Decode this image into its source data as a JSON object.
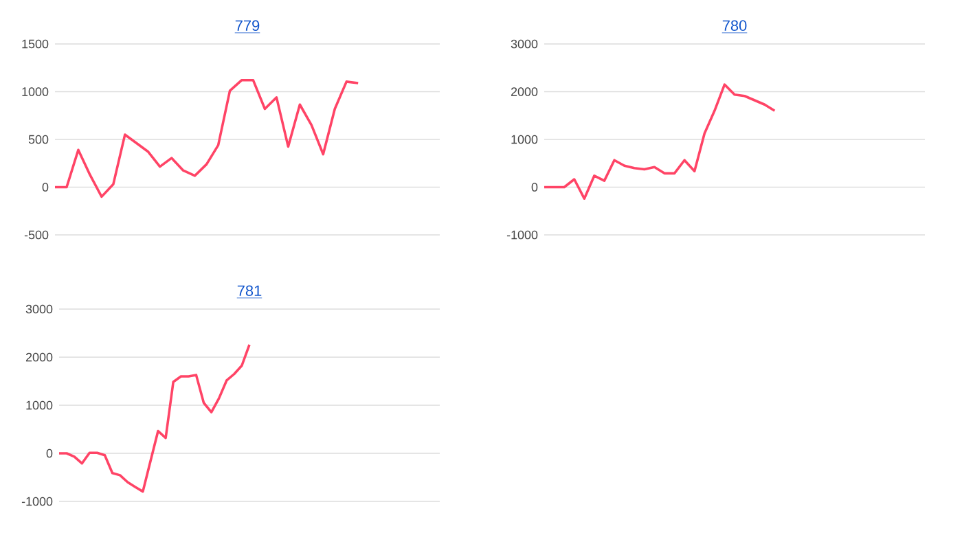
{
  "chart_data": [
    {
      "type": "line",
      "title": "779",
      "color": "#ff4466",
      "grid": "y",
      "ylim": [
        -500,
        1500
      ],
      "yticks": [
        -500,
        0,
        500,
        1000,
        1500
      ],
      "categories": [
        null,
        null,
        null,
        null,
        null,
        null,
        null,
        null,
        null,
        null,
        null,
        null,
        null,
        null,
        null,
        null,
        null,
        null,
        null,
        null,
        null,
        null,
        null,
        null,
        null,
        null,
        null,
        null,
        null,
        null,
        null,
        null,
        null,
        null
      ],
      "values": [
        0,
        0,
        390,
        130,
        -100,
        30,
        550,
        460,
        370,
        215,
        305,
        175,
        120,
        240,
        440,
        1010,
        1120,
        1120,
        820,
        940,
        425,
        865,
        650,
        345,
        820,
        1105,
        1090,
        null,
        null,
        null,
        null,
        null,
        null,
        null
      ]
    },
    {
      "type": "line",
      "title": "780",
      "color": "#ff4466",
      "grid": "y",
      "ylim": [
        -1000,
        3000
      ],
      "yticks": [
        -1000,
        0,
        1000,
        2000,
        3000
      ],
      "categories": [
        null,
        null,
        null,
        null,
        null,
        null,
        null,
        null,
        null,
        null,
        null,
        null,
        null,
        null,
        null,
        null,
        null,
        null,
        null,
        null,
        null,
        null,
        null,
        null,
        null,
        null,
        null,
        null,
        null,
        null,
        null,
        null,
        null,
        null,
        null,
        null,
        null,
        null,
        null
      ],
      "values": [
        0,
        0,
        0,
        165,
        -240,
        240,
        135,
        565,
        450,
        400,
        375,
        420,
        290,
        290,
        565,
        335,
        1125,
        1600,
        2150,
        1940,
        1910,
        1820,
        1730,
        1600,
        null,
        null,
        null,
        null,
        null,
        null,
        null,
        null,
        null,
        null,
        null,
        null,
        null,
        null,
        null
      ]
    },
    {
      "type": "line",
      "title": "781",
      "color": "#ff4466",
      "grid": "y",
      "ylim": [
        -1000,
        3000
      ],
      "yticks": [
        -1000,
        0,
        1000,
        2000,
        3000
      ],
      "categories": [
        null,
        null,
        null,
        null,
        null,
        null,
        null,
        null,
        null,
        null,
        null,
        null,
        null,
        null,
        null,
        null,
        null,
        null,
        null,
        null,
        null,
        null,
        null,
        null,
        null,
        null,
        null,
        null,
        null,
        null,
        null,
        null,
        null,
        null,
        null,
        null,
        null,
        null,
        null,
        null,
        null,
        null,
        null,
        null,
        null,
        null,
        null,
        null,
        null,
        null,
        null
      ],
      "values": [
        0,
        0,
        -70,
        -210,
        10,
        10,
        -40,
        -410,
        -455,
        -600,
        -700,
        -795,
        -165,
        465,
        320,
        1485,
        1600,
        1600,
        1630,
        1050,
        855,
        1145,
        1515,
        1650,
        1825,
        2260,
        null,
        null,
        null,
        null,
        null,
        null,
        null,
        null,
        null,
        null,
        null,
        null,
        null,
        null,
        null,
        null,
        null,
        null,
        null,
        null,
        null,
        null,
        null,
        null,
        null
      ]
    }
  ]
}
